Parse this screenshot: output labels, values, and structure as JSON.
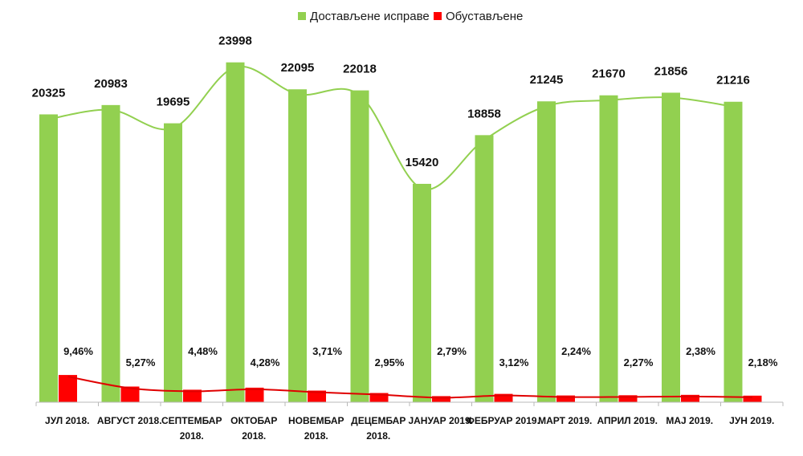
{
  "chart_data": {
    "type": "bar",
    "categories": [
      [
        "ЈУЛ 2018."
      ],
      [
        "АВГУСТ 2018."
      ],
      [
        "СЕПТЕМБАР",
        "2018."
      ],
      [
        "ОКТОБАР",
        "2018."
      ],
      [
        "НОВЕМБАР",
        "2018."
      ],
      [
        "ДЕЦЕМБАР",
        "2018."
      ],
      [
        "ЈАНУАР 2019."
      ],
      [
        "ФЕБРУАР 2019."
      ],
      [
        "МАРТ 2019."
      ],
      [
        "АПРИЛ 2019."
      ],
      [
        "МАЈ 2019."
      ],
      [
        "ЈУН 2019."
      ]
    ],
    "series": [
      {
        "name": "Достављене исправе",
        "color": "#92d050",
        "values": [
          20325,
          20983,
          19695,
          23998,
          22095,
          22018,
          15420,
          18858,
          21245,
          21670,
          21856,
          21216
        ],
        "labels": [
          "20325",
          "20983",
          "19695",
          "23998",
          "22095",
          "22018",
          "15420",
          "18858",
          "21245",
          "21670",
          "21856",
          "21216"
        ]
      },
      {
        "name": "Обустављене",
        "color": "#ff0000",
        "values": [
          1923,
          1106,
          882,
          1027,
          820,
          650,
          430,
          588,
          476,
          492,
          520,
          463
        ],
        "labels": [
          "9,46%",
          "5,27%",
          "4,48%",
          "4,28%",
          "3,71%",
          "2,95%",
          "2,79%",
          "3,12%",
          "2,24%",
          "2,27%",
          "2,38%",
          "2,18%"
        ]
      }
    ],
    "trendlines": true,
    "ylim": [
      0,
      25000
    ],
    "legend": "top-center",
    "grid": false,
    "title": "",
    "xlabel": "",
    "ylabel": ""
  }
}
